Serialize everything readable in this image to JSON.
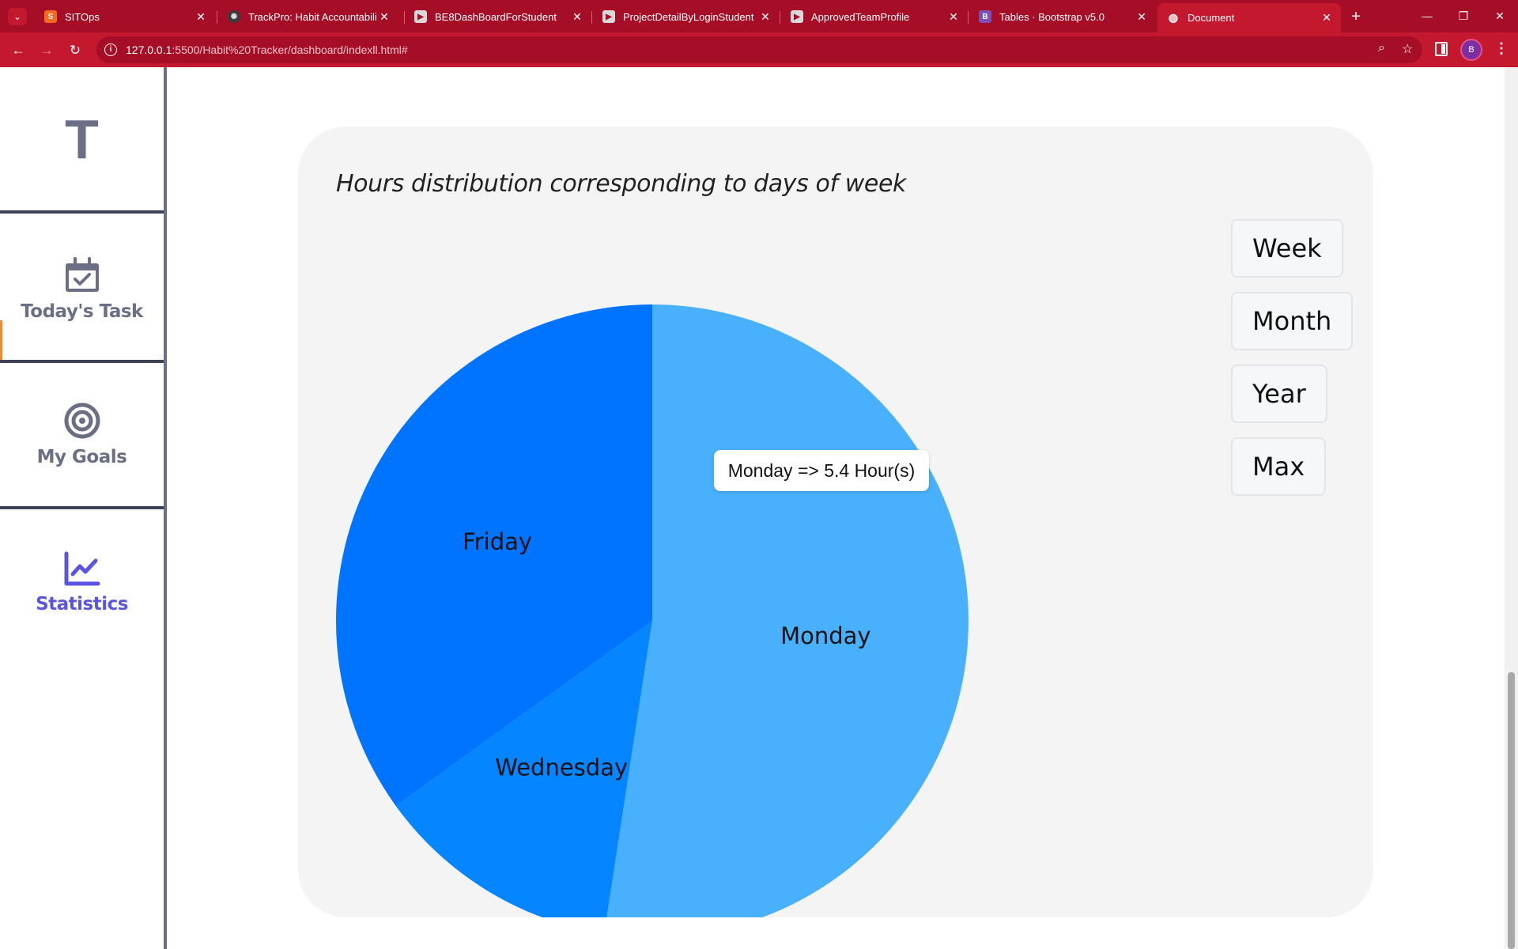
{
  "browser": {
    "tabs": [
      {
        "label": "SITOps",
        "favicon": "sitops-icon",
        "active": false
      },
      {
        "label": "TrackPro: Habit Accountability",
        "favicon": "openai-icon",
        "active": false
      },
      {
        "label": "BE8DashBoardForStudent",
        "favicon": "page-icon",
        "active": false
      },
      {
        "label": "ProjectDetailByLoginStudent",
        "favicon": "page-icon",
        "active": false
      },
      {
        "label": "ApprovedTeamProfile",
        "favicon": "page-icon",
        "active": false
      },
      {
        "label": "Tables · Bootstrap v5.0",
        "favicon": "bootstrap-icon",
        "active": false
      },
      {
        "label": "Document",
        "favicon": "globe-icon",
        "active": true
      }
    ],
    "url_host": "127.0.0.1",
    "url_path": ":5500/Habit%20Tracker/dashboard/indexll.html#",
    "profile_initial": "B",
    "bootstrap_letter": "B"
  },
  "sidebar": {
    "logo": "T",
    "items": [
      {
        "label": "Today's Task",
        "icon": "calendar-check-icon",
        "active": false
      },
      {
        "label": "My Goals",
        "icon": "target-icon",
        "active": false
      },
      {
        "label": "Statistics",
        "icon": "chart-line-icon",
        "active": true
      }
    ]
  },
  "main": {
    "chart_title": "Hours distribution corresponding to days of week",
    "range_buttons": [
      "Week",
      "Month",
      "Year",
      "Max"
    ],
    "tooltip": "Monday => 5.4 Hour(s)"
  },
  "colors": {
    "monday": "#48b0fc",
    "wednesday": "#0585ff",
    "friday": "#0073ff",
    "accent": "#5a55e0"
  },
  "chart_data": {
    "type": "pie",
    "title": "Hours distribution corresponding to days of week",
    "categories": [
      "Monday",
      "Wednesday",
      "Friday"
    ],
    "values": [
      5.4,
      1.3,
      3.6
    ],
    "unit": "Hour(s)"
  }
}
